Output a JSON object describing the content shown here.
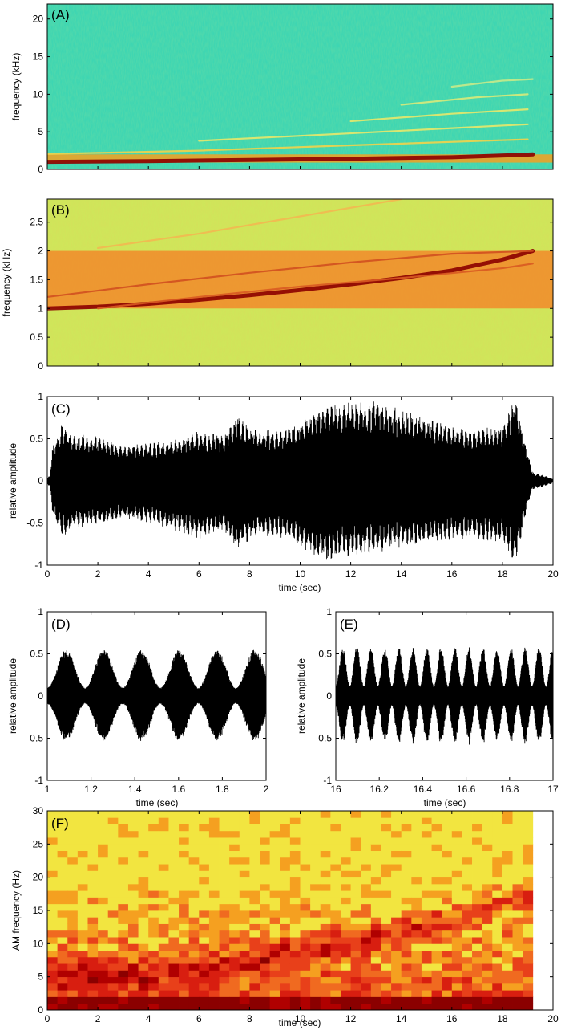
{
  "chart_data": [
    {
      "id": "A",
      "type": "heatmap",
      "panel_label": "(A)",
      "xlabel": "",
      "ylabel": "frequency (kHz)",
      "xlim": [
        0,
        20
      ],
      "ylim": [
        0,
        22
      ],
      "yticks": [
        0,
        5,
        10,
        15,
        20
      ],
      "background_color": "#3ed6b2",
      "traces": [
        {
          "kind": "band",
          "x": [
            0,
            20
          ],
          "y_lo": [
            0.9,
            0.9
          ],
          "y_hi": [
            2.0,
            2.0
          ],
          "color": "#f5a020"
        },
        {
          "kind": "line",
          "x": [
            0,
            4,
            8,
            12,
            16,
            18.5,
            19.2
          ],
          "y": [
            1.0,
            1.1,
            1.25,
            1.42,
            1.62,
            1.9,
            2.0
          ],
          "color": "#8b0000"
        },
        {
          "kind": "line",
          "x": [
            0,
            6,
            12,
            19
          ],
          "y": [
            2.05,
            2.5,
            3.2,
            4.0
          ],
          "color": "#f2d34a"
        },
        {
          "kind": "line",
          "x": [
            6,
            12,
            19
          ],
          "y": [
            3.8,
            4.8,
            6.0
          ],
          "color": "#e8e86a"
        },
        {
          "kind": "line",
          "x": [
            12,
            16,
            19
          ],
          "y": [
            6.4,
            7.4,
            8.0
          ],
          "color": "#e8e86a"
        },
        {
          "kind": "line",
          "x": [
            14,
            17,
            19
          ],
          "y": [
            8.6,
            9.6,
            10.0
          ],
          "color": "#d8ea7a"
        },
        {
          "kind": "line",
          "x": [
            16,
            18,
            19.2
          ],
          "y": [
            11.0,
            11.8,
            12.0
          ],
          "color": "#c8ea8a"
        }
      ]
    },
    {
      "id": "B",
      "type": "heatmap",
      "panel_label": "(B)",
      "xlabel": "",
      "ylabel": "frequency (kHz)",
      "xlim": [
        0,
        20
      ],
      "ylim": [
        0,
        2.9
      ],
      "yticks": [
        0,
        0.5,
        1,
        1.5,
        2,
        2.5
      ],
      "background_color": "#cfe65a",
      "traces": [
        {
          "kind": "band",
          "x": [
            0,
            20
          ],
          "y_lo": [
            1.0,
            1.0
          ],
          "y_hi": [
            2.0,
            2.0
          ],
          "color": "#f28a2a"
        },
        {
          "kind": "line",
          "x": [
            0,
            2,
            4,
            6,
            8,
            10,
            12,
            14,
            16,
            18,
            19.2
          ],
          "y": [
            1.0,
            1.03,
            1.08,
            1.15,
            1.23,
            1.32,
            1.42,
            1.53,
            1.66,
            1.85,
            2.0
          ],
          "color": "#8b0000"
        },
        {
          "kind": "line",
          "x": [
            0,
            4,
            8,
            12,
            16,
            19.2
          ],
          "y": [
            1.2,
            1.42,
            1.62,
            1.8,
            1.95,
            2.0
          ],
          "color": "#d05020"
        },
        {
          "kind": "line",
          "x": [
            2,
            6,
            10,
            14,
            18,
            19.2
          ],
          "y": [
            1.0,
            1.2,
            1.38,
            1.53,
            1.7,
            1.78
          ],
          "color": "#d85a22"
        },
        {
          "kind": "line",
          "x": [
            2,
            6,
            10,
            14
          ],
          "y": [
            2.05,
            2.3,
            2.6,
            2.9
          ],
          "color": "#f2b850"
        }
      ]
    },
    {
      "id": "C",
      "type": "line",
      "panel_label": "(C)",
      "xlabel": "time (sec)",
      "ylabel": "relative amplitude",
      "xlim": [
        0,
        20
      ],
      "ylim": [
        -1,
        1
      ],
      "xticks": [
        0,
        2,
        4,
        6,
        8,
        10,
        12,
        14,
        16,
        18,
        20
      ],
      "yticks": [
        -1,
        -0.5,
        0,
        0.5,
        1
      ],
      "x": [
        0,
        0.1,
        0.2,
        0.4,
        0.6,
        1,
        2,
        3,
        4,
        5,
        6,
        7,
        7.5,
        8,
        9,
        10,
        11,
        12,
        13,
        14,
        15,
        16,
        17,
        18,
        18.5,
        19,
        19.2,
        19.6,
        20
      ],
      "upper": [
        0.05,
        0.06,
        0.4,
        0.55,
        0.7,
        0.55,
        0.55,
        0.42,
        0.45,
        0.5,
        0.6,
        0.55,
        0.8,
        0.65,
        0.6,
        0.72,
        0.9,
        0.95,
        0.95,
        0.85,
        0.75,
        0.65,
        0.62,
        0.65,
        1.0,
        0.35,
        0.1,
        0.07,
        0.03
      ],
      "lower": [
        -0.05,
        -0.06,
        -0.4,
        -0.55,
        -0.7,
        -0.55,
        -0.55,
        -0.45,
        -0.5,
        -0.6,
        -0.7,
        -0.6,
        -0.85,
        -0.7,
        -0.65,
        -0.8,
        -0.95,
        -0.9,
        -0.85,
        -0.8,
        -0.75,
        -0.7,
        -0.7,
        -0.75,
        -1.0,
        -0.3,
        -0.1,
        -0.07,
        -0.03
      ]
    },
    {
      "id": "D",
      "type": "line",
      "panel_label": "(D)",
      "xlabel": "time (sec)",
      "ylabel": "relative amplitude",
      "xlim": [
        1,
        2
      ],
      "ylim": [
        -1,
        1
      ],
      "xticks": [
        1,
        1.2,
        1.4,
        1.6,
        1.8,
        2
      ],
      "yticks": [
        -1,
        -0.5,
        0,
        0.5,
        1
      ],
      "am_rate_hz": 5.8,
      "env_peak": 0.55,
      "env_trough": 0.1
    },
    {
      "id": "E",
      "type": "line",
      "panel_label": "(E)",
      "xlabel": "time (sec)",
      "ylabel": "relative amplitude",
      "xlim": [
        16,
        17
      ],
      "ylim": [
        -1,
        1
      ],
      "xticks": [
        16,
        16.2,
        16.4,
        16.6,
        16.8,
        17
      ],
      "yticks": [
        -1,
        -0.5,
        0,
        0.5,
        1
      ],
      "am_rate_hz": 15.5,
      "env_peak": 0.58,
      "env_trough": 0.12
    },
    {
      "id": "F",
      "type": "heatmap",
      "panel_label": "(F)",
      "xlabel": "time (sec)",
      "ylabel": "AM frequency (Hz)",
      "xlim": [
        0,
        20
      ],
      "ylim": [
        0,
        30
      ],
      "xticks": [
        0,
        2,
        4,
        6,
        8,
        10,
        12,
        14,
        16,
        18,
        20
      ],
      "yticks": [
        0,
        5,
        10,
        15,
        20,
        25,
        30
      ],
      "data_xmax": 19.4,
      "cell_time_sec": 0.4,
      "cell_freq_hz": 1,
      "ridge_x": [
        0,
        4,
        8,
        12,
        16,
        19.4
      ],
      "ridge_y": [
        5,
        5.6,
        7.5,
        10.5,
        14,
        18
      ]
    }
  ],
  "colors": {
    "dark_red": "#8b0000",
    "red": "#d81e10",
    "orange": "#f5a020",
    "yellow": "#f2e540",
    "green": "#3ed6b2"
  }
}
